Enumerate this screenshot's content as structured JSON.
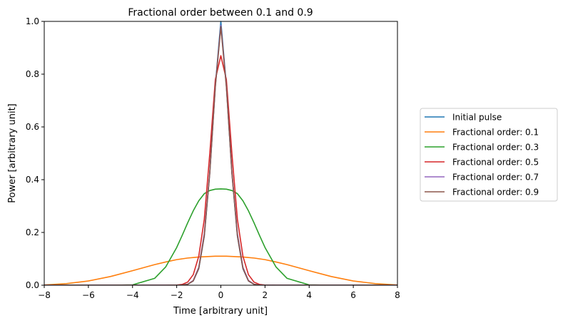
{
  "chart_data": {
    "type": "line",
    "title": "Fractional order between 0.1 and 0.9",
    "xlabel": "Time [arbitrary unit]",
    "ylabel": "Power [arbitrary unit]",
    "xlim": [
      -8,
      8
    ],
    "ylim": [
      0,
      1.0
    ],
    "xticks": [
      -8,
      -6,
      -4,
      -2,
      0,
      2,
      4,
      6,
      8
    ],
    "yticks": [
      0.0,
      0.2,
      0.4,
      0.6,
      0.8,
      1.0
    ],
    "xtick_labels": [
      "−8",
      "−6",
      "−4",
      "−2",
      "0",
      "2",
      "4",
      "6",
      "8"
    ],
    "ytick_labels": [
      "0.0",
      "0.2",
      "0.4",
      "0.6",
      "0.8",
      "1.0"
    ],
    "grid": false,
    "legend_position": "right, outside plot area",
    "x_points": [
      -8,
      -7,
      -6,
      -5,
      -4,
      -3,
      -2.5,
      -2,
      -1.75,
      -1.5,
      -1.25,
      -1,
      -0.75,
      -0.5,
      -0.25,
      0,
      0.25,
      0.5,
      0.75,
      1,
      1.25,
      1.5,
      1.75,
      2,
      2.5,
      3,
      4,
      5,
      6,
      7,
      8
    ],
    "series": [
      {
        "name": "Initial pulse",
        "color": "#1f77b4",
        "values": [
          0,
          0,
          0,
          0,
          0,
          0,
          0,
          0.0001,
          0.0006,
          0.0035,
          0.016,
          0.0625,
          0.1859,
          0.4267,
          0.7579,
          1.0,
          0.7579,
          0.4267,
          0.1859,
          0.0625,
          0.016,
          0.0035,
          0.0006,
          0.0001,
          0,
          0,
          0,
          0,
          0,
          0,
          0
        ]
      },
      {
        "name": "Fractional order: 0.1",
        "color": "#ff7f0e",
        "values": [
          0.001,
          0.006,
          0.016,
          0.033,
          0.055,
          0.078,
          0.088,
          0.097,
          0.1,
          0.103,
          0.105,
          0.107,
          0.108,
          0.109,
          0.11,
          0.11,
          0.11,
          0.109,
          0.108,
          0.107,
          0.105,
          0.103,
          0.1,
          0.097,
          0.088,
          0.078,
          0.055,
          0.033,
          0.016,
          0.006,
          0.001
        ]
      },
      {
        "name": "Fractional order: 0.3",
        "color": "#2ca02c",
        "values": [
          0,
          0,
          0,
          0,
          0.0012,
          0.026,
          0.069,
          0.143,
          0.189,
          0.237,
          0.282,
          0.32,
          0.347,
          0.359,
          0.364,
          0.365,
          0.364,
          0.359,
          0.347,
          0.32,
          0.282,
          0.237,
          0.189,
          0.143,
          0.069,
          0.026,
          0.0012,
          0,
          0,
          0,
          0
        ]
      },
      {
        "name": "Fractional order: 0.5",
        "color": "#d62728",
        "values": [
          0,
          0,
          0,
          0,
          0,
          0,
          0,
          0.0005,
          0.003,
          0.012,
          0.04,
          0.11,
          0.25,
          0.5,
          0.78,
          0.87,
          0.78,
          0.5,
          0.25,
          0.11,
          0.04,
          0.012,
          0.003,
          0.0005,
          0,
          0,
          0,
          0,
          0,
          0,
          0
        ]
      },
      {
        "name": "Fractional order: 0.7",
        "color": "#9467bd",
        "values": [
          0,
          0,
          0,
          0,
          0,
          0,
          0,
          0.0001,
          0.0007,
          0.004,
          0.018,
          0.068,
          0.196,
          0.43,
          0.755,
          0.985,
          0.755,
          0.43,
          0.196,
          0.068,
          0.018,
          0.004,
          0.0007,
          0.0001,
          0,
          0,
          0,
          0,
          0,
          0,
          0
        ]
      },
      {
        "name": "Fractional order: 0.9",
        "color": "#8c564b",
        "values": [
          0,
          0,
          0,
          0,
          0,
          0,
          0,
          0.0001,
          0.0006,
          0.0036,
          0.0165,
          0.064,
          0.188,
          0.427,
          0.752,
          0.98,
          0.752,
          0.427,
          0.188,
          0.064,
          0.0165,
          0.0036,
          0.0006,
          0.0001,
          0,
          0,
          0,
          0,
          0,
          0,
          0
        ]
      }
    ]
  }
}
